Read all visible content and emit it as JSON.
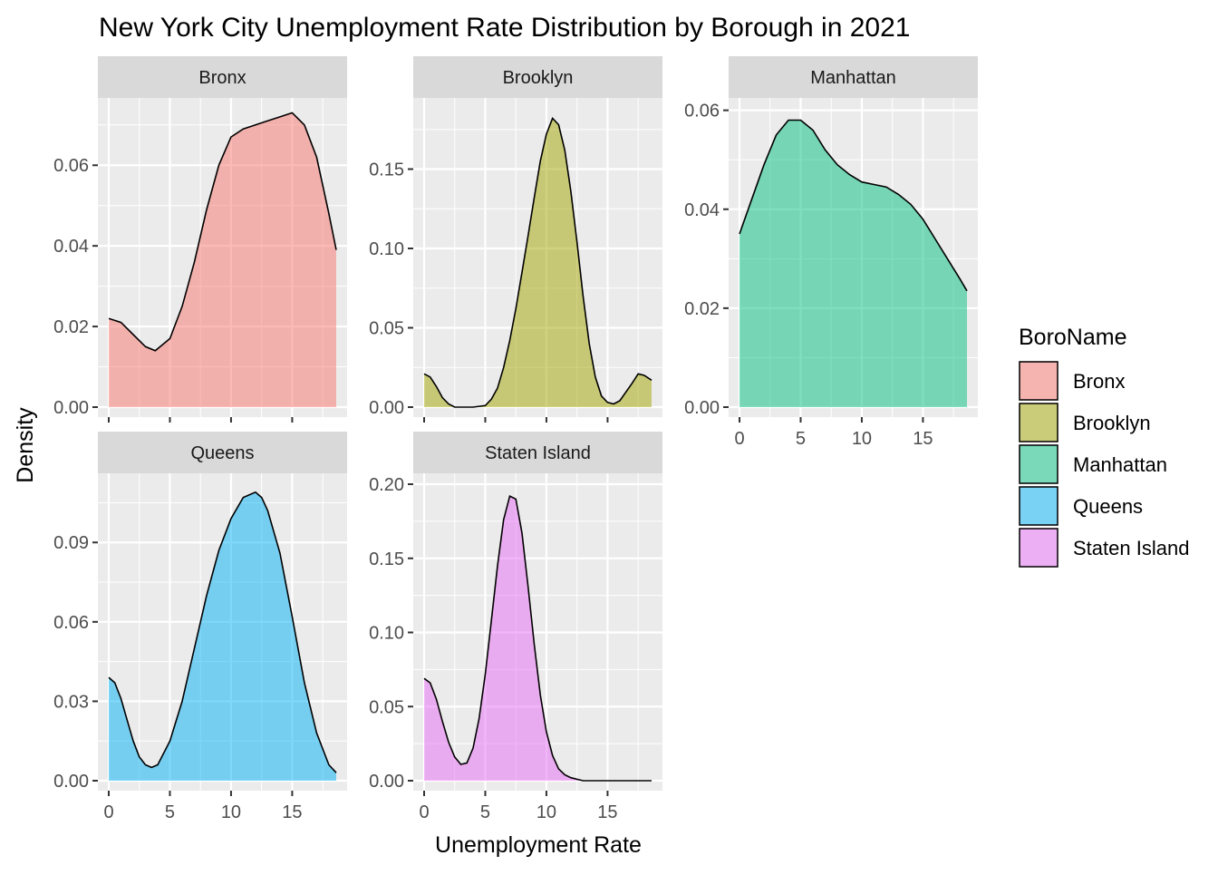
{
  "title": "New York City Unemployment Rate Distribution by Borough in 2021",
  "xlabel": "Unemployment Rate",
  "ylabel": "Density",
  "legend": {
    "title": "BoroName",
    "position": "right",
    "items": [
      {
        "label": "Bronx",
        "color": "#F8766D"
      },
      {
        "label": "Brooklyn",
        "color": "#A3A500"
      },
      {
        "label": "Manhattan",
        "color": "#00BF7D"
      },
      {
        "label": "Queens",
        "color": "#00B0F6"
      },
      {
        "label": "Staten Island",
        "color": "#E76BF3"
      }
    ]
  },
  "chart_data": {
    "type": "area",
    "subtype": "faceted density",
    "title": "New York City Unemployment Rate Distribution by Borough in 2021",
    "xlabel": "Unemployment Rate",
    "ylabel": "Density",
    "xlim": [
      0,
      18.6
    ],
    "xticks": [
      0,
      5,
      10,
      15
    ],
    "fill_alpha": 0.5,
    "grid": true,
    "facets": [
      {
        "name": "Bronx",
        "color": "#F8766D",
        "ylim": [
          0,
          0.074
        ],
        "yticks": [
          0,
          0.02,
          0.04,
          0.06
        ],
        "ytick_labels": [
          "0.00",
          "0.02",
          "0.04",
          "0.06"
        ],
        "x": [
          0,
          1,
          2,
          3,
          3.8,
          5,
          6,
          7,
          8,
          9,
          10,
          11,
          12,
          13,
          14,
          15,
          16,
          17,
          18,
          18.6
        ],
        "y": [
          0.022,
          0.021,
          0.018,
          0.015,
          0.014,
          0.017,
          0.025,
          0.036,
          0.049,
          0.06,
          0.067,
          0.069,
          0.07,
          0.071,
          0.072,
          0.073,
          0.07,
          0.062,
          0.048,
          0.039
        ]
      },
      {
        "name": "Brooklyn",
        "color": "#A3A500",
        "ylim": [
          0,
          0.188
        ],
        "yticks": [
          0,
          0.05,
          0.1,
          0.15
        ],
        "ytick_labels": [
          "0.00",
          "0.05",
          "0.10",
          "0.15"
        ],
        "x": [
          0,
          0.5,
          1,
          1.5,
          2,
          2.5,
          3,
          4,
          5,
          5.5,
          6,
          6.5,
          7,
          7.5,
          8,
          8.5,
          9,
          9.5,
          10,
          10.5,
          11,
          11.5,
          12,
          12.5,
          13,
          13.5,
          14,
          14.5,
          15,
          15.5,
          16,
          17,
          17.5,
          18,
          18.6
        ],
        "y": [
          0.021,
          0.019,
          0.013,
          0.006,
          0.002,
          0.0,
          0.0,
          0.0,
          0.001,
          0.005,
          0.012,
          0.025,
          0.042,
          0.062,
          0.085,
          0.108,
          0.132,
          0.155,
          0.172,
          0.182,
          0.178,
          0.162,
          0.136,
          0.104,
          0.07,
          0.04,
          0.019,
          0.007,
          0.003,
          0.002,
          0.004,
          0.015,
          0.021,
          0.02,
          0.017
        ]
      },
      {
        "name": "Manhattan",
        "color": "#00BF7D",
        "ylim": [
          0,
          0.0603
        ],
        "yticks": [
          0,
          0.02,
          0.04,
          0.06
        ],
        "ytick_labels": [
          "0.00",
          "0.02",
          "0.04",
          "0.06"
        ],
        "x": [
          0,
          1,
          2,
          3,
          4,
          5,
          6,
          7,
          8,
          9,
          10,
          11,
          12,
          13,
          14,
          15,
          16,
          17,
          18,
          18.6
        ],
        "y": [
          0.035,
          0.042,
          0.049,
          0.055,
          0.058,
          0.058,
          0.056,
          0.052,
          0.049,
          0.047,
          0.0455,
          0.045,
          0.0445,
          0.043,
          0.041,
          0.038,
          0.034,
          0.03,
          0.026,
          0.0235
        ]
      },
      {
        "name": "Queens",
        "color": "#00B0F6",
        "ylim": [
          0,
          0.112
        ],
        "yticks": [
          0,
          0.03,
          0.06,
          0.09
        ],
        "ytick_labels": [
          "0.00",
          "0.03",
          "0.06",
          "0.09"
        ],
        "x": [
          0,
          0.5,
          1,
          1.5,
          2,
          2.5,
          3,
          3.5,
          4,
          5,
          6,
          7,
          8,
          9,
          10,
          11,
          12,
          12.5,
          13,
          14,
          15,
          16,
          17,
          18,
          18.6
        ],
        "y": [
          0.039,
          0.037,
          0.031,
          0.023,
          0.015,
          0.009,
          0.006,
          0.005,
          0.006,
          0.015,
          0.03,
          0.05,
          0.07,
          0.087,
          0.099,
          0.107,
          0.109,
          0.107,
          0.102,
          0.086,
          0.062,
          0.037,
          0.018,
          0.006,
          0.003
        ]
      },
      {
        "name": "Staten Island",
        "color": "#E76BF3",
        "ylim": [
          0,
          0.2
        ],
        "yticks": [
          0,
          0.05,
          0.1,
          0.15,
          0.2
        ],
        "ytick_labels": [
          "0.00",
          "0.05",
          "0.10",
          "0.15",
          "0.20"
        ],
        "x": [
          0,
          0.5,
          1,
          1.5,
          2,
          2.5,
          3,
          3.5,
          4,
          4.5,
          5,
          5.5,
          6,
          6.5,
          7,
          7.5,
          8,
          8.5,
          9,
          9.5,
          10,
          10.5,
          11,
          11.5,
          12,
          12.5,
          13,
          14,
          15,
          16,
          17,
          18,
          18.6
        ],
        "y": [
          0.069,
          0.066,
          0.055,
          0.04,
          0.026,
          0.016,
          0.011,
          0.012,
          0.022,
          0.042,
          0.072,
          0.108,
          0.145,
          0.176,
          0.192,
          0.19,
          0.167,
          0.131,
          0.092,
          0.058,
          0.033,
          0.017,
          0.008,
          0.004,
          0.002,
          0.001,
          0.0,
          0.0,
          0.0,
          0.0,
          0.0,
          0.0,
          0.0
        ]
      }
    ]
  }
}
